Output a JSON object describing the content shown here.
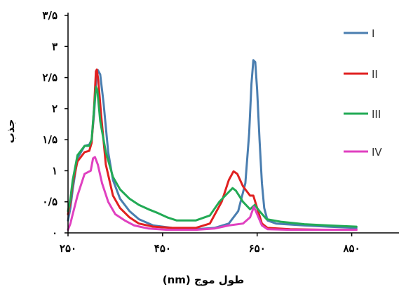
{
  "chart_data": {
    "type": "line",
    "title": "",
    "xlabel": "طول موج (nm)",
    "ylabel": "جذب",
    "xlim": [
      250,
      950
    ],
    "ylim": [
      0,
      3.5
    ],
    "x_ticks": [
      {
        "value": 250,
        "label": "۲۵۰"
      },
      {
        "value": 450,
        "label": "۴۵۰"
      },
      {
        "value": 650,
        "label": "۶۵۰"
      },
      {
        "value": 850,
        "label": "۸۵۰"
      }
    ],
    "y_ticks": [
      {
        "value": 0,
        "label": "۰"
      },
      {
        "value": 0.5,
        "label": "۰/۵"
      },
      {
        "value": 1,
        "label": "۱"
      },
      {
        "value": 1.5,
        "label": "۱/۵"
      },
      {
        "value": 2,
        "label": "۲"
      },
      {
        "value": 2.5,
        "label": "۲/۵"
      },
      {
        "value": 3,
        "label": "۳"
      },
      {
        "value": 3.5,
        "label": "۳/۵"
      }
    ],
    "grid": false,
    "legend_position": "right",
    "series": [
      {
        "name": "I",
        "color": "#4a7eb0",
        "points": [
          [
            250,
            0.2
          ],
          [
            255,
            0.4
          ],
          [
            260,
            0.7
          ],
          [
            270,
            1.2
          ],
          [
            285,
            1.4
          ],
          [
            295,
            1.42
          ],
          [
            300,
            1.5
          ],
          [
            305,
            1.9
          ],
          [
            310,
            2.5
          ],
          [
            313,
            2.62
          ],
          [
            318,
            2.55
          ],
          [
            325,
            2.1
          ],
          [
            335,
            1.3
          ],
          [
            345,
            0.85
          ],
          [
            360,
            0.55
          ],
          [
            380,
            0.35
          ],
          [
            400,
            0.22
          ],
          [
            430,
            0.12
          ],
          [
            470,
            0.08
          ],
          [
            520,
            0.06
          ],
          [
            560,
            0.08
          ],
          [
            590,
            0.15
          ],
          [
            610,
            0.35
          ],
          [
            625,
            0.8
          ],
          [
            633,
            1.6
          ],
          [
            638,
            2.4
          ],
          [
            642,
            2.78
          ],
          [
            646,
            2.75
          ],
          [
            650,
            2.3
          ],
          [
            655,
            1.5
          ],
          [
            660,
            0.8
          ],
          [
            665,
            0.4
          ],
          [
            672,
            0.2
          ],
          [
            690,
            0.15
          ],
          [
            750,
            0.12
          ],
          [
            800,
            0.1
          ],
          [
            860,
            0.08
          ]
        ]
      },
      {
        "name": "II",
        "color": "#e02020",
        "points": [
          [
            250,
            0.3
          ],
          [
            255,
            0.5
          ],
          [
            260,
            0.8
          ],
          [
            270,
            1.15
          ],
          [
            285,
            1.3
          ],
          [
            295,
            1.32
          ],
          [
            300,
            1.45
          ],
          [
            305,
            2.0
          ],
          [
            309,
            2.6
          ],
          [
            311,
            2.63
          ],
          [
            314,
            2.45
          ],
          [
            320,
            1.9
          ],
          [
            330,
            1.1
          ],
          [
            345,
            0.6
          ],
          [
            360,
            0.4
          ],
          [
            380,
            0.25
          ],
          [
            400,
            0.15
          ],
          [
            430,
            0.1
          ],
          [
            470,
            0.08
          ],
          [
            520,
            0.08
          ],
          [
            550,
            0.15
          ],
          [
            575,
            0.5
          ],
          [
            590,
            0.85
          ],
          [
            600,
            0.99
          ],
          [
            608,
            0.95
          ],
          [
            620,
            0.75
          ],
          [
            635,
            0.6
          ],
          [
            642,
            0.6
          ],
          [
            650,
            0.4
          ],
          [
            660,
            0.15
          ],
          [
            672,
            0.08
          ],
          [
            720,
            0.06
          ],
          [
            800,
            0.05
          ],
          [
            860,
            0.05
          ]
        ]
      },
      {
        "name": "III",
        "color": "#22aa55",
        "points": [
          [
            250,
            0.35
          ],
          [
            255,
            0.55
          ],
          [
            260,
            0.85
          ],
          [
            270,
            1.25
          ],
          [
            285,
            1.4
          ],
          [
            295,
            1.4
          ],
          [
            300,
            1.5
          ],
          [
            305,
            2.0
          ],
          [
            309,
            2.35
          ],
          [
            312,
            2.3
          ],
          [
            318,
            1.8
          ],
          [
            330,
            1.3
          ],
          [
            345,
            0.9
          ],
          [
            360,
            0.7
          ],
          [
            380,
            0.55
          ],
          [
            400,
            0.45
          ],
          [
            420,
            0.38
          ],
          [
            440,
            0.32
          ],
          [
            460,
            0.25
          ],
          [
            480,
            0.2
          ],
          [
            520,
            0.2
          ],
          [
            550,
            0.28
          ],
          [
            570,
            0.5
          ],
          [
            585,
            0.62
          ],
          [
            598,
            0.72
          ],
          [
            605,
            0.68
          ],
          [
            620,
            0.5
          ],
          [
            635,
            0.38
          ],
          [
            645,
            0.45
          ],
          [
            655,
            0.35
          ],
          [
            670,
            0.22
          ],
          [
            700,
            0.18
          ],
          [
            750,
            0.14
          ],
          [
            800,
            0.12
          ],
          [
            860,
            0.1
          ]
        ]
      },
      {
        "name": "IV",
        "color": "#e040c0",
        "points": [
          [
            250,
            0.05
          ],
          [
            255,
            0.15
          ],
          [
            260,
            0.3
          ],
          [
            270,
            0.6
          ],
          [
            285,
            0.95
          ],
          [
            298,
            1.0
          ],
          [
            303,
            1.2
          ],
          [
            307,
            1.22
          ],
          [
            313,
            1.1
          ],
          [
            322,
            0.8
          ],
          [
            335,
            0.5
          ],
          [
            350,
            0.3
          ],
          [
            370,
            0.2
          ],
          [
            390,
            0.12
          ],
          [
            420,
            0.07
          ],
          [
            460,
            0.05
          ],
          [
            520,
            0.05
          ],
          [
            560,
            0.07
          ],
          [
            590,
            0.12
          ],
          [
            620,
            0.15
          ],
          [
            635,
            0.25
          ],
          [
            643,
            0.42
          ],
          [
            650,
            0.3
          ],
          [
            660,
            0.12
          ],
          [
            672,
            0.06
          ],
          [
            720,
            0.05
          ],
          [
            800,
            0.05
          ],
          [
            860,
            0.05
          ]
        ]
      }
    ]
  }
}
